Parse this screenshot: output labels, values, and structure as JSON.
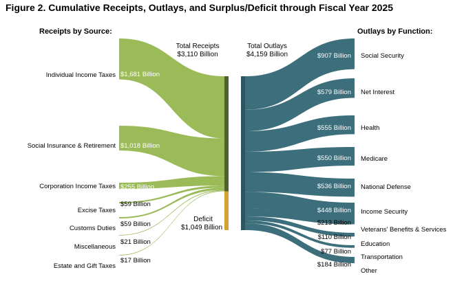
{
  "title": "Figure 2. Cumulative Receipts, Outlays, and Surplus/Deficit through Fiscal Year 2025",
  "receipts_header": "Receipts by Source:",
  "outlays_header": "Outlays by Function:",
  "total_receipts": {
    "label": "Total Receipts",
    "value": "$3,110 Billion"
  },
  "total_outlays": {
    "label": "Total Outlays",
    "value": "$4,159 Billion"
  },
  "deficit": {
    "label": "Deficit",
    "value": "$1,049 Billion"
  },
  "colors": {
    "receipts": "#9bbb59",
    "receipts_bar": "#4f6228",
    "deficit_bar": "#d4a135",
    "outlays": "#3c6e7b",
    "outlays_bar": "#2d5560"
  },
  "chart_data": {
    "type": "sankey",
    "units": "Billion",
    "receipts": [
      {
        "name": "Individual Income Taxes",
        "value": 1681,
        "label": "$1,681 Billion"
      },
      {
        "name": "Social Insurance & Retirement",
        "value": 1018,
        "label": "$1,018 Billion"
      },
      {
        "name": "Corporation Income Taxes",
        "value": 255,
        "label": "$255 Billion"
      },
      {
        "name": "Excise Taxes",
        "value": 59,
        "label": "$59 Billion"
      },
      {
        "name": "Customs Duties",
        "value": 59,
        "label": "$59 Billion"
      },
      {
        "name": "Miscellaneous",
        "value": 21,
        "label": "$21 Billion"
      },
      {
        "name": "Estate and Gift Taxes",
        "value": 17,
        "label": "$17 Billion"
      }
    ],
    "outlays": [
      {
        "name": "Social Security",
        "value": 907,
        "label": "$907 Billion"
      },
      {
        "name": "Net Interest",
        "value": 579,
        "label": "$579 Billion"
      },
      {
        "name": "Health",
        "value": 555,
        "label": "$555 Billion"
      },
      {
        "name": "Medicare",
        "value": 550,
        "label": "$550 Billion"
      },
      {
        "name": "National Defense",
        "value": 536,
        "label": "$536 Billion"
      },
      {
        "name": "Income Security",
        "value": 448,
        "label": "$448 Billion"
      },
      {
        "name": "Veterans' Benefits & Services",
        "value": 213,
        "label": "$213 Billion"
      },
      {
        "name": "Education",
        "value": 110,
        "label": "$110 Billion"
      },
      {
        "name": "Transportation",
        "value": 77,
        "label": "$77 Billion"
      },
      {
        "name": "Other",
        "value": 184,
        "label": "$184 Billion"
      }
    ]
  }
}
